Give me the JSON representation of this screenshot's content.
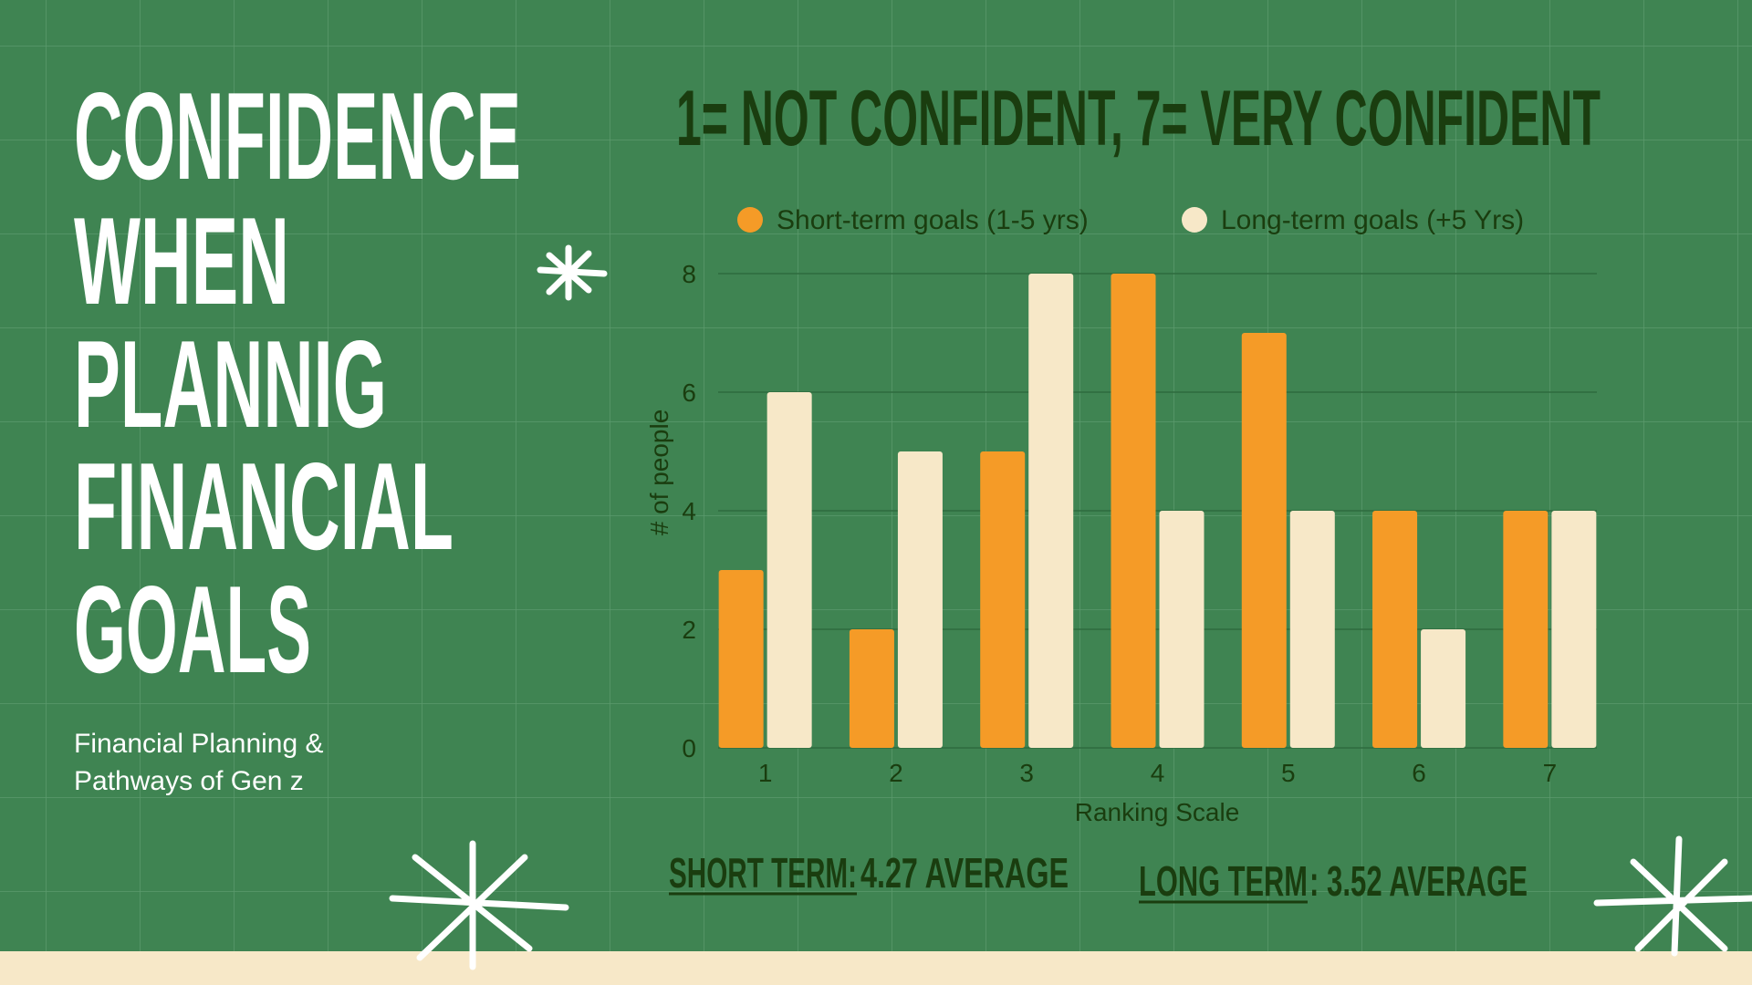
{
  "heading": {
    "lines": [
      "CONFIDENCE",
      "WHEN",
      "PLANNIG",
      "FINANCIAL",
      "GOALS"
    ],
    "subtitle": [
      "Financial Planning &",
      "Pathways of Gen z"
    ]
  },
  "chart_data": {
    "type": "bar",
    "title": "1= NOT CONFIDENT, 7= VERY CONFIDENT",
    "x_label": "Ranking Scale",
    "y_label": "# of people",
    "categories": [
      "1",
      "2",
      "3",
      "4",
      "5",
      "6",
      "7"
    ],
    "series": [
      {
        "name": "Short-term goals (1-5 yrs)",
        "color": "#f59b27",
        "values": [
          3,
          2,
          5,
          8,
          7,
          4,
          4
        ]
      },
      {
        "name": "Long-term goals (+5 Yrs)",
        "color": "#f7e8c8",
        "values": [
          6,
          5,
          8,
          4,
          4,
          2,
          4
        ]
      }
    ],
    "ylim": [
      0,
      8
    ],
    "yticks": [
      0,
      2,
      4,
      6,
      8
    ],
    "grid": true
  },
  "summary": {
    "short_label": "SHORT TERM:",
    "short_text": " 4.27 AVERAGE",
    "long_label": "LONG TERM ",
    "long_text": ": 3.52 AVERAGE"
  }
}
